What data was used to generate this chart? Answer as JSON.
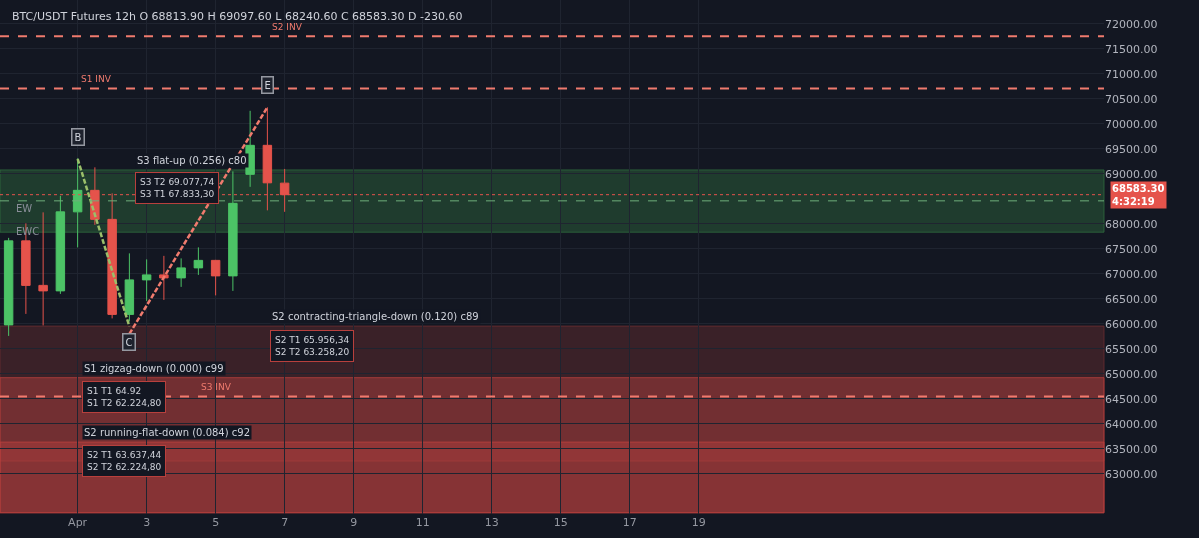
{
  "chart_data": {
    "type": "candlestick",
    "title": "BTC/USDT Futures 12h O 68813.90 H 69097.60 L 68240.60 C 68583.30 D -230.60",
    "x": [
      -1,
      -0.5,
      0,
      0.5,
      1,
      1.5,
      2,
      2.5,
      3,
      3.5,
      4,
      4.5,
      5,
      5.5,
      6,
      6.5,
      7
    ],
    "ohlc": [
      [
        65980,
        67720,
        65760,
        67660
      ],
      [
        67660,
        68010,
        66200,
        66770
      ],
      [
        66770,
        68230,
        65970,
        66660
      ],
      [
        66660,
        68560,
        66600,
        68240
      ],
      [
        68240,
        69310,
        67530,
        68670
      ],
      [
        68670,
        69130,
        67980,
        68090
      ],
      [
        68090,
        68610,
        66110,
        66190
      ],
      [
        66190,
        67410,
        66050,
        66880
      ],
      [
        66880,
        67290,
        66460,
        66980
      ],
      [
        66980,
        67360,
        66480,
        66920
      ],
      [
        66920,
        67310,
        66740,
        67120
      ],
      [
        67120,
        67530,
        66980,
        67270
      ],
      [
        67270,
        67280,
        66570,
        66960
      ],
      [
        66960,
        69050,
        66660,
        68410
      ],
      [
        68990,
        70260,
        68740,
        69570
      ],
      [
        69570,
        70330,
        68270,
        68820
      ],
      [
        68813.9,
        69097.6,
        68240.6,
        68583.3
      ]
    ],
    "series": [
      {
        "type": "line",
        "x": [
          1,
          2.5
        ],
        "values": [
          69300,
          65950
        ],
        "color": "#9bbf6a",
        "line_style": "dashed"
      },
      {
        "type": "line",
        "x": [
          2.5,
          6.5
        ],
        "values": [
          65800,
          70330
        ],
        "color": "#f07b6e",
        "line_style": "dashed"
      }
    ],
    "bands": [
      {
        "axis": "y",
        "from": 67833.3,
        "to": 69077.74,
        "label": "S3 flat-up (0.256) c80",
        "color": "#2f6b3f"
      },
      {
        "axis": "y",
        "from": 63258.2,
        "to": 65956.34,
        "label": "S2 contracting-triangle-down (0.120) c89",
        "color": "#6b2e30"
      },
      {
        "axis": "y",
        "from": 62224.8,
        "to": 64925,
        "label": "S1 zigzag-down (0.000) c99",
        "color": "#b8403d"
      },
      {
        "axis": "y",
        "from": 62224.8,
        "to": 63637.44,
        "label": "S2 running-flat-down (0.084) c92",
        "color": "#b8403d"
      }
    ],
    "ref_lines": [
      {
        "axis": "y",
        "value": 70707,
        "label": "S1 INV",
        "color": "#f07b6e",
        "line_style": "dashed"
      },
      {
        "axis": "y",
        "value": 71750,
        "label": "S2 INV",
        "color": "#f07b6e",
        "line_style": "dashed"
      },
      {
        "axis": "y",
        "value": 64550,
        "label": "S3 INV",
        "color": "#f07b6e",
        "line_style": "dashed"
      },
      {
        "axis": "y",
        "value": 68583.3,
        "label": "68583.30\n4:32:19",
        "color": "#e5534b",
        "line_style": "dotted"
      },
      {
        "axis": "y",
        "value": 68460,
        "color": "#6fae7a",
        "line_style": "dashed"
      }
    ],
    "annotations": [
      {
        "text": "B",
        "x": 1,
        "y": 69300
      },
      {
        "text": "C",
        "x": 2.5,
        "y": 65950
      },
      {
        "text": "E",
        "x": 6.5,
        "y": 70330
      },
      "EW",
      "EWC",
      "S3 T2 69.077,74\nS3 T1 67.833,30",
      "S2 T1 65.956,34\nS2 T2 63.258,20",
      "S1 T1 64.92\nS1 T2 62.224,80",
      "S2 T1 63.637,44\nS2 T2 62.224,80"
    ],
    "xlim": [
      -1.25,
      30.75
    ],
    "xticks": [
      {
        "value": 1,
        "label": "Apr"
      },
      3,
      5,
      7,
      9,
      11,
      13,
      15,
      17,
      19
    ],
    "ylim": [
      62200,
      72475
    ],
    "yticks": [
      {
        "value": 63000,
        "label": "63000.00"
      },
      {
        "value": 63500,
        "label": "63500.00"
      },
      {
        "value": 64000,
        "label": "64000.00"
      },
      {
        "value": 64500,
        "label": "64500.00"
      },
      {
        "value": 65000,
        "label": "65000.00"
      },
      {
        "value": 65500,
        "label": "65500.00"
      },
      {
        "value": 66000,
        "label": "66000.00"
      },
      {
        "value": 66500,
        "label": "66500.00"
      },
      {
        "value": 67000,
        "label": "67000.00"
      },
      {
        "value": 67500,
        "label": "67500.00"
      },
      {
        "value": 68000,
        "label": "68000.00"
      },
      {
        "value": 69000,
        "label": "69000.00"
      },
      {
        "value": 69500,
        "label": "69500.00"
      },
      {
        "value": 70000,
        "label": "70000.00"
      },
      {
        "value": 70500,
        "label": "70500.00"
      },
      {
        "value": 71000,
        "label": "71000.00"
      },
      {
        "value": 71500,
        "label": "71500.00"
      },
      {
        "value": 72000,
        "label": "72000.00"
      }
    ],
    "grid": true
  }
}
